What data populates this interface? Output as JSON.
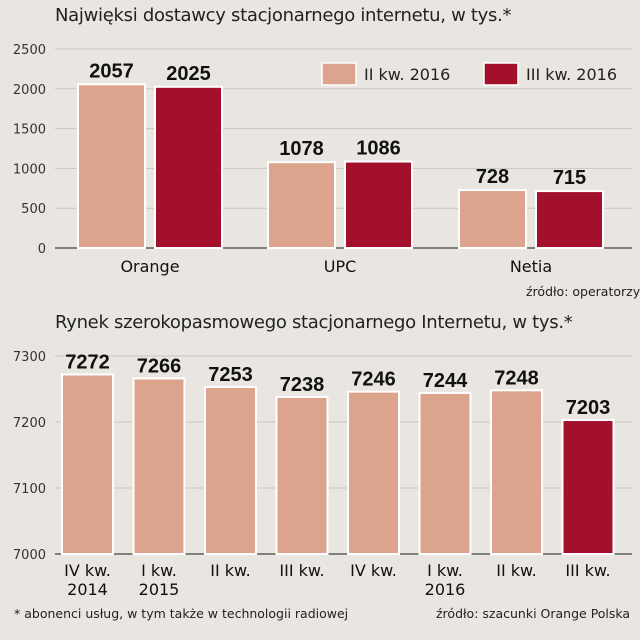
{
  "chart_data": [
    {
      "type": "bar",
      "title": "Najwięksi dostawcy stacjonarnego internetu, w tys.*",
      "categories": [
        "Orange",
        "UPC",
        "Netia"
      ],
      "series": [
        {
          "name": "II kw. 2016",
          "values": [
            2057,
            1078,
            728
          ],
          "color": "#dca48c"
        },
        {
          "name": "III kw. 2016",
          "values": [
            2025,
            1086,
            715
          ],
          "color": "#a3102c"
        }
      ],
      "ylim": [
        0,
        2500
      ],
      "yticks": [
        "0",
        "500",
        "1000",
        "1500",
        "2000",
        "2500"
      ],
      "legend": "top-right",
      "grid": true,
      "source": "źródło: operatorzy"
    },
    {
      "type": "bar",
      "title": "Rynek szerokopasmowego stacjonarnego Internetu, w tys.*",
      "categories": [
        [
          "IV kw.",
          "2014"
        ],
        [
          "I kw.",
          "2015"
        ],
        [
          "II kw.",
          ""
        ],
        [
          "III kw.",
          ""
        ],
        [
          "IV kw.",
          ""
        ],
        [
          "I kw.",
          "2016"
        ],
        [
          "II kw.",
          ""
        ],
        [
          "III kw.",
          ""
        ]
      ],
      "values": [
        7272,
        7266,
        7253,
        7238,
        7246,
        7244,
        7248,
        7203
      ],
      "ylim": [
        7000,
        7300
      ],
      "yticks": [
        "7000",
        "7100",
        "7200",
        "7300"
      ],
      "grid": true,
      "colors": {
        "default": "#dca48c",
        "highlight": "#a3102c"
      },
      "highlight_index": 7,
      "source": "źródło: szacunki Orange Polska"
    }
  ],
  "footnote": "* abonenci usług, w tym także w technologii radiowej"
}
